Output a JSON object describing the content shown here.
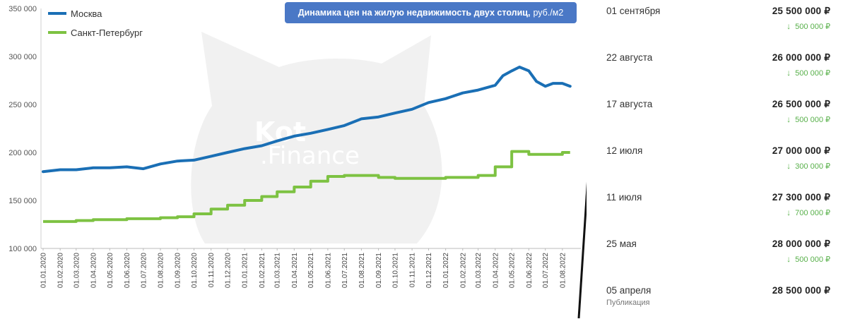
{
  "chart_data": {
    "type": "line",
    "title": "Динамика цен на жилую недвижимость двух столиц,",
    "title_unit": "руб./м2",
    "ylim": [
      100000,
      350000
    ],
    "yticks": [
      100000,
      150000,
      200000,
      250000,
      300000,
      350000
    ],
    "ytick_labels": [
      "100 000",
      "150 000",
      "200 000",
      "250 000",
      "300 000",
      "350 000"
    ],
    "x_labels": [
      "01.01.2020",
      "01.02.2020",
      "01.03.2020",
      "01.04.2020",
      "01.05.2020",
      "01.06.2020",
      "01.07.2020",
      "01.08.2020",
      "01.09.2020",
      "01.10.2020",
      "01.11.2020",
      "01.12.2020",
      "01.01.2021",
      "01.02.2021",
      "01.03.2021",
      "01.04.2021",
      "01.05.2021",
      "01.06.2021",
      "01.07.2021",
      "01.08.2021",
      "01.09.2021",
      "01.10.2021",
      "01.11.2021",
      "01.12.2021",
      "01.01.2022",
      "01.02.2022",
      "01.03.2022",
      "01.04.2022",
      "01.05.2022",
      "01.06.2022",
      "01.07.2022",
      "01.08.2022"
    ],
    "legend_position": "top-left",
    "grid": false,
    "series": [
      {
        "name": "Москва",
        "color": "#1a6fb5",
        "x": [
          "01.01.2020",
          "01.02.2020",
          "01.03.2020",
          "01.04.2020",
          "01.05.2020",
          "01.06.2020",
          "01.07.2020",
          "01.08.2020",
          "01.09.2020",
          "01.10.2020",
          "01.11.2020",
          "01.12.2020",
          "01.01.2021",
          "01.02.2021",
          "01.03.2021",
          "01.04.2021",
          "01.05.2021",
          "01.06.2021",
          "01.07.2021",
          "01.08.2021",
          "01.09.2021",
          "01.10.2021",
          "01.11.2021",
          "01.12.2021",
          "01.01.2022",
          "01.02.2022",
          "01.03.2022",
          "01.04.2022",
          "15.04.2022",
          "01.05.2022",
          "15.05.2022",
          "01.06.2022",
          "15.06.2022",
          "01.07.2022",
          "15.07.2022",
          "01.08.2022",
          "15.08.2022"
        ],
        "values": [
          180000,
          182000,
          182000,
          184000,
          184000,
          185000,
          183000,
          188000,
          191000,
          192000,
          196000,
          200000,
          204000,
          207000,
          212000,
          217000,
          220000,
          224000,
          228000,
          235000,
          237000,
          241000,
          245000,
          252000,
          256000,
          262000,
          265000,
          270000,
          280000,
          285000,
          289000,
          285000,
          274000,
          269000,
          272000,
          272000,
          269000
        ]
      },
      {
        "name": "Санкт-Петербург",
        "color": "#7dc242",
        "x": [
          "01.01.2020",
          "01.02.2020",
          "01.03.2020",
          "01.04.2020",
          "01.05.2020",
          "01.06.2020",
          "01.07.2020",
          "01.08.2020",
          "01.09.2020",
          "01.10.2020",
          "01.11.2020",
          "01.12.2020",
          "01.01.2021",
          "01.02.2021",
          "01.03.2021",
          "01.04.2021",
          "01.05.2021",
          "01.06.2021",
          "01.07.2021",
          "01.08.2021",
          "01.09.2021",
          "01.10.2021",
          "01.11.2021",
          "01.12.2021",
          "01.01.2022",
          "01.02.2022",
          "01.03.2022",
          "01.04.2022",
          "01.05.2022",
          "01.06.2022",
          "01.07.2022",
          "01.08.2022",
          "15.08.2022"
        ],
        "values": [
          128000,
          128000,
          129000,
          130000,
          130000,
          131000,
          131000,
          132000,
          133000,
          136000,
          141000,
          145000,
          150000,
          154000,
          159000,
          164000,
          170000,
          175000,
          176000,
          176000,
          174000,
          173000,
          173000,
          173000,
          174000,
          174000,
          176000,
          185000,
          201000,
          198000,
          198000,
          200000,
          200000
        ]
      }
    ]
  },
  "watermark": {
    "line1": "Kot",
    "line2": ".Finance"
  },
  "price_history": [
    {
      "date": "01 сентября",
      "price": "25 500 000 ₽",
      "change": "500 000 ₽"
    },
    {
      "date": "22 августа",
      "price": "26 000 000 ₽",
      "change": "500 000 ₽"
    },
    {
      "date": "17 августа",
      "price": "26 500 000 ₽",
      "change": "500 000 ₽"
    },
    {
      "date": "12 июля",
      "price": "27 000 000 ₽",
      "change": "300 000 ₽"
    },
    {
      "date": "11 июля",
      "price": "27 300 000 ₽",
      "change": "700 000 ₽"
    },
    {
      "date": "25 мая",
      "price": "28 000 000 ₽",
      "change": "500 000 ₽"
    },
    {
      "date": "05 апреля",
      "price": "28 500 000 ₽",
      "change": "",
      "note": "Публикация"
    }
  ],
  "colors": {
    "accent": "#4a78c6",
    "decrease": "#58b04a"
  }
}
